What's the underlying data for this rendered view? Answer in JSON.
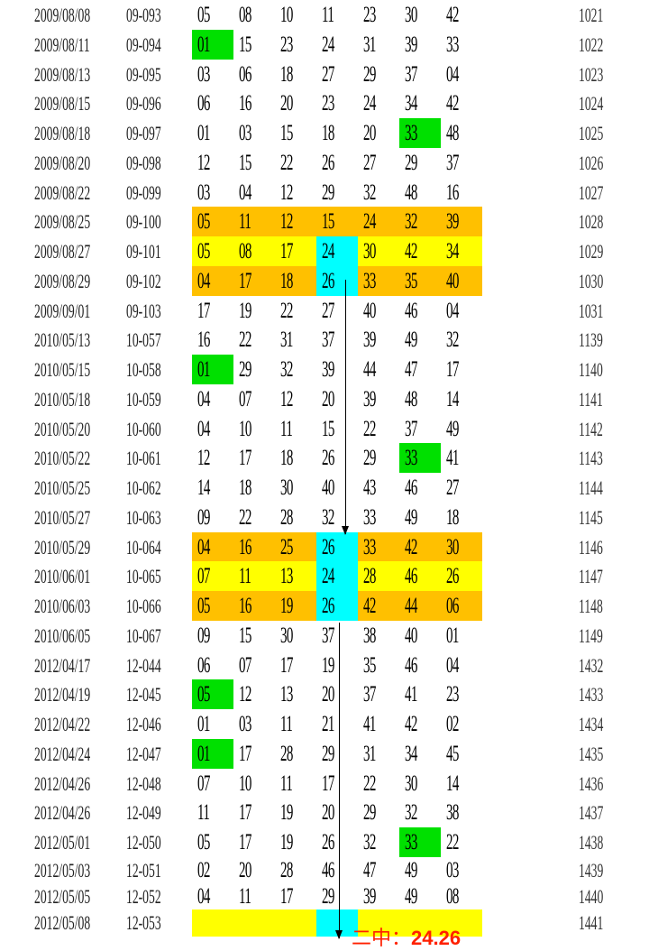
{
  "colors": {
    "orange": "#FFC000",
    "yellow": "#FFFF00",
    "cyan": "#00FFFF",
    "green": "#00E000",
    "note": "#FF2000"
  },
  "rows": [
    {
      "date": "2009/08/08",
      "issue": "09-093",
      "nums": [
        "05",
        "08",
        "10",
        "11",
        "23",
        "30",
        "42"
      ],
      "period": "1021"
    },
    {
      "date": "2009/08/11",
      "issue": "09-094",
      "nums": [
        "01",
        "15",
        "23",
        "24",
        "31",
        "39",
        "33"
      ],
      "period": "1022",
      "green": [
        0
      ]
    },
    {
      "date": "2009/08/13",
      "issue": "09-095",
      "nums": [
        "03",
        "06",
        "18",
        "27",
        "29",
        "37",
        "04"
      ],
      "period": "1023"
    },
    {
      "date": "2009/08/15",
      "issue": "09-096",
      "nums": [
        "06",
        "16",
        "20",
        "23",
        "24",
        "34",
        "42"
      ],
      "period": "1024"
    },
    {
      "date": "2009/08/18",
      "issue": "09-097",
      "nums": [
        "01",
        "03",
        "15",
        "18",
        "20",
        "33",
        "48"
      ],
      "period": "1025",
      "green": [
        5
      ]
    },
    {
      "date": "2009/08/20",
      "issue": "09-098",
      "nums": [
        "12",
        "15",
        "22",
        "26",
        "27",
        "29",
        "37"
      ],
      "period": "1026"
    },
    {
      "date": "2009/08/22",
      "issue": "09-099",
      "nums": [
        "03",
        "04",
        "12",
        "29",
        "32",
        "48",
        "16"
      ],
      "period": "1027"
    },
    {
      "date": "2009/08/25",
      "issue": "09-100",
      "nums": [
        "05",
        "11",
        "12",
        "15",
        "24",
        "32",
        "39"
      ],
      "period": "1028",
      "band": "orange"
    },
    {
      "date": "2009/08/27",
      "issue": "09-101",
      "nums": [
        "05",
        "08",
        "17",
        "24",
        "30",
        "42",
        "34"
      ],
      "period": "1029",
      "band": "yellow",
      "cyan": [
        3
      ]
    },
    {
      "date": "2009/08/29",
      "issue": "09-102",
      "nums": [
        "04",
        "17",
        "18",
        "26",
        "33",
        "35",
        "40"
      ],
      "period": "1030",
      "band": "orange",
      "cyan": [
        3
      ]
    },
    {
      "date": "2009/09/01",
      "issue": "09-103",
      "nums": [
        "17",
        "19",
        "22",
        "27",
        "40",
        "46",
        "04"
      ],
      "period": "1031"
    },
    {
      "date": "2010/05/13",
      "issue": "10-057",
      "nums": [
        "16",
        "22",
        "31",
        "37",
        "39",
        "49",
        "32"
      ],
      "period": "1139"
    },
    {
      "date": "2010/05/15",
      "issue": "10-058",
      "nums": [
        "01",
        "29",
        "32",
        "39",
        "44",
        "47",
        "17"
      ],
      "period": "1140",
      "green": [
        0
      ]
    },
    {
      "date": "2010/05/18",
      "issue": "10-059",
      "nums": [
        "04",
        "07",
        "12",
        "20",
        "39",
        "48",
        "14"
      ],
      "period": "1141"
    },
    {
      "date": "2010/05/20",
      "issue": "10-060",
      "nums": [
        "04",
        "10",
        "11",
        "15",
        "22",
        "37",
        "49"
      ],
      "period": "1142"
    },
    {
      "date": "2010/05/22",
      "issue": "10-061",
      "nums": [
        "12",
        "17",
        "18",
        "26",
        "29",
        "33",
        "41"
      ],
      "period": "1143",
      "green": [
        5
      ]
    },
    {
      "date": "2010/05/25",
      "issue": "10-062",
      "nums": [
        "14",
        "18",
        "30",
        "40",
        "43",
        "46",
        "27"
      ],
      "period": "1144"
    },
    {
      "date": "2010/05/27",
      "issue": "10-063",
      "nums": [
        "09",
        "22",
        "28",
        "32",
        "33",
        "49",
        "18"
      ],
      "period": "1145"
    },
    {
      "date": "2010/05/29",
      "issue": "10-064",
      "nums": [
        "04",
        "16",
        "25",
        "26",
        "33",
        "42",
        "30"
      ],
      "period": "1146",
      "band": "orange",
      "cyan": [
        3
      ]
    },
    {
      "date": "2010/06/01",
      "issue": "10-065",
      "nums": [
        "07",
        "11",
        "13",
        "24",
        "28",
        "46",
        "26"
      ],
      "period": "1147",
      "band": "yellow",
      "cyan": [
        3
      ]
    },
    {
      "date": "2010/06/03",
      "issue": "10-066",
      "nums": [
        "05",
        "16",
        "19",
        "26",
        "42",
        "44",
        "06"
      ],
      "period": "1148",
      "band": "orange",
      "cyan": [
        3
      ]
    },
    {
      "date": "2010/06/05",
      "issue": "10-067",
      "nums": [
        "09",
        "15",
        "30",
        "37",
        "38",
        "40",
        "01"
      ],
      "period": "1149"
    },
    {
      "date": "2012/04/17",
      "issue": "12-044",
      "nums": [
        "06",
        "07",
        "17",
        "19",
        "35",
        "46",
        "04"
      ],
      "period": "1432"
    },
    {
      "date": "2012/04/19",
      "issue": "12-045",
      "nums": [
        "05",
        "12",
        "13",
        "20",
        "37",
        "41",
        "23"
      ],
      "period": "1433",
      "green": [
        0
      ]
    },
    {
      "date": "2012/04/22",
      "issue": "12-046",
      "nums": [
        "01",
        "03",
        "11",
        "21",
        "41",
        "42",
        "02"
      ],
      "period": "1434"
    },
    {
      "date": "2012/04/24",
      "issue": "12-047",
      "nums": [
        "01",
        "17",
        "28",
        "29",
        "31",
        "34",
        "45"
      ],
      "period": "1435",
      "green": [
        0
      ]
    },
    {
      "date": "2012/04/26",
      "issue": "12-048",
      "nums": [
        "07",
        "10",
        "11",
        "17",
        "22",
        "30",
        "14"
      ],
      "period": "1436"
    },
    {
      "date": "2012/04/26",
      "issue": "12-049",
      "nums": [
        "11",
        "17",
        "19",
        "20",
        "29",
        "32",
        "38"
      ],
      "period": "1437"
    },
    {
      "date": "2012/05/01",
      "issue": "12-050",
      "nums": [
        "05",
        "17",
        "19",
        "26",
        "32",
        "33",
        "22"
      ],
      "period": "1438",
      "green": [
        5
      ]
    },
    {
      "date": "2012/05/03",
      "issue": "12-051",
      "nums": [
        "02",
        "20",
        "28",
        "46",
        "47",
        "49",
        "03"
      ],
      "period": "1439"
    },
    {
      "date": "2012/05/05",
      "issue": "12-052",
      "nums": [
        "04",
        "11",
        "17",
        "29",
        "39",
        "49",
        "08"
      ],
      "period": "1440"
    },
    {
      "date": "2012/05/08",
      "issue": "12-053",
      "nums": [
        "",
        "",
        "",
        "",
        "",
        "",
        ""
      ],
      "period": "1441",
      "band": "yellow",
      "cyan": [
        3
      ]
    }
  ],
  "note": {
    "label": "二中：",
    "value": "24.26"
  }
}
